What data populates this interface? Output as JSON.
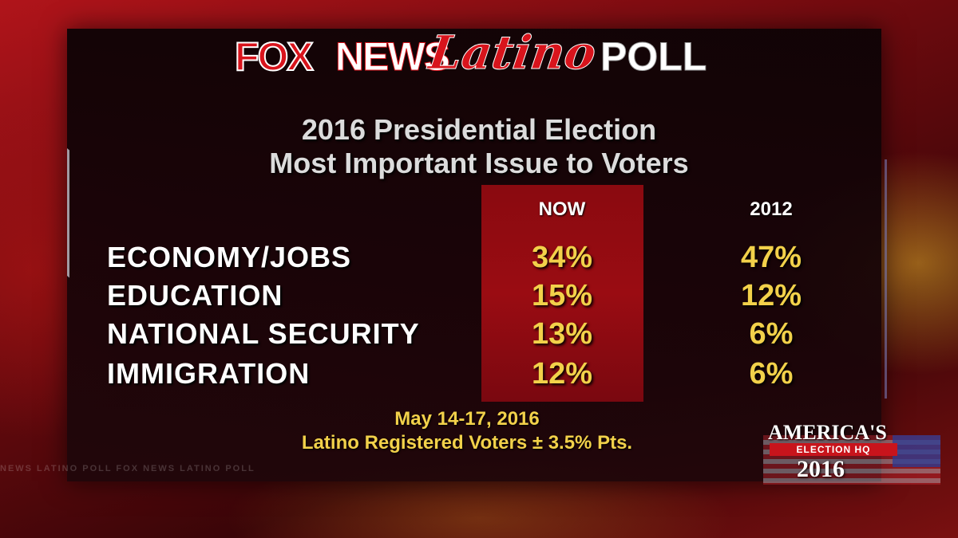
{
  "logo": {
    "fox": "FOX",
    "news": "NEWS",
    "latino": "Latino",
    "poll": "POLL"
  },
  "title": {
    "line1": "2016 Presidential Election",
    "line2": "Most Important Issue to Voters"
  },
  "colors": {
    "accent_red": "#d8141c",
    "value_gold": "#f2d14a",
    "now_column": "#8a0a10"
  },
  "chart_data": {
    "type": "table",
    "columns": [
      "NOW",
      "2012"
    ],
    "rows": [
      {
        "label": "ECONOMY/JOBS",
        "now": "34%",
        "y2012": "47%"
      },
      {
        "label": "EDUCATION",
        "now": "15%",
        "y2012": "12%"
      },
      {
        "label": "NATIONAL SECURITY",
        "now": "13%",
        "y2012": "6%"
      },
      {
        "label": "IMMIGRATION",
        "now": "12%",
        "y2012": "6%"
      }
    ],
    "series": [
      {
        "name": "NOW",
        "values": [
          34,
          15,
          13,
          12
        ]
      },
      {
        "name": "2012",
        "values": [
          47,
          12,
          6,
          6
        ]
      }
    ],
    "categories": [
      "ECONOMY/JOBS",
      "EDUCATION",
      "NATIONAL SECURITY",
      "IMMIGRATION"
    ]
  },
  "footnote": {
    "dates": "May 14-17, 2016",
    "sample": "Latino Registered Voters ± 3.5% Pts."
  },
  "ticker": "NEWS LATINO POLL FOX NEWS LATINO POLL",
  "badge": {
    "americas": "AMERICA'S",
    "election_hq": "ELECTION HQ",
    "year": "2016"
  }
}
